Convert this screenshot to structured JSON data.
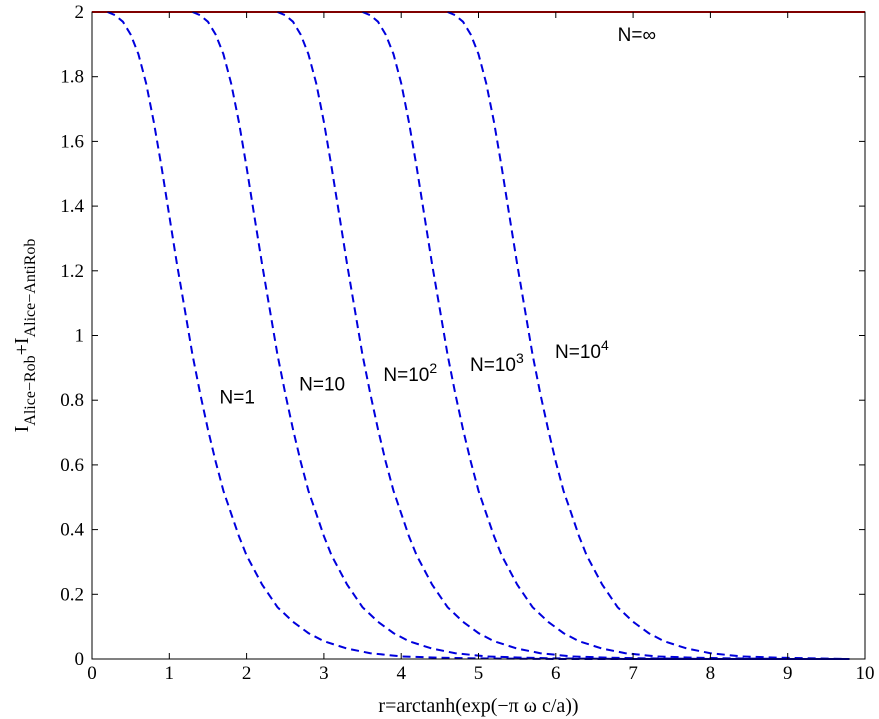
{
  "chart_data": {
    "type": "line",
    "title": "",
    "xlabel": "r=arctanh(exp(−π ω c/a))",
    "ylabel": {
      "base1": "I",
      "sub1": "Alice−Rob",
      "plus": "+",
      "base2": "I",
      "sub2": "Alice−AntiRob"
    },
    "xlim": [
      0,
      10
    ],
    "ylim": [
      0,
      2
    ],
    "xticks": [
      "0",
      "1",
      "2",
      "3",
      "4",
      "5",
      "6",
      "7",
      "8",
      "9",
      "10"
    ],
    "yticks": [
      "0",
      "0.2",
      "0.4",
      "0.6",
      "0.8",
      "1",
      "1.2",
      "1.4",
      "1.6",
      "1.8",
      "2"
    ],
    "grid": false,
    "series": [
      {
        "name": "N=∞",
        "style": "solid",
        "color": "#ff0000",
        "x": [
          0,
          10
        ],
        "y": [
          2,
          2
        ]
      },
      {
        "name": "N=1",
        "style": "dashed",
        "color": "#0000dd",
        "x": [
          0.2,
          0.3,
          0.4,
          0.5,
          0.6,
          0.7,
          0.8,
          0.9,
          1.0,
          1.1,
          1.2,
          1.3,
          1.4,
          1.5,
          1.6,
          1.7,
          1.8,
          1.9,
          2.0,
          2.2,
          2.4,
          2.6,
          2.8,
          3.0,
          3.3,
          3.6,
          4.0,
          4.5,
          5.0,
          5.5,
          6.0,
          7.0,
          8.0,
          9.0,
          9.8
        ],
        "y": [
          2.0,
          1.99,
          1.97,
          1.93,
          1.87,
          1.78,
          1.66,
          1.52,
          1.37,
          1.22,
          1.08,
          0.94,
          0.82,
          0.71,
          0.61,
          0.52,
          0.45,
          0.38,
          0.32,
          0.23,
          0.16,
          0.115,
          0.08,
          0.055,
          0.032,
          0.018,
          0.008,
          0.004,
          0.002,
          0.001,
          0.0,
          0.0,
          0.0,
          0.0,
          0.0
        ]
      },
      {
        "name": "N=10",
        "style": "dashed",
        "color": "#0000dd",
        "x": [
          1.3,
          1.4,
          1.5,
          1.6,
          1.7,
          1.8,
          1.9,
          2.0,
          2.1,
          2.2,
          2.3,
          2.4,
          2.5,
          2.6,
          2.7,
          2.8,
          2.9,
          3.0,
          3.1,
          3.3,
          3.5,
          3.7,
          3.9,
          4.1,
          4.4,
          4.7,
          5.1,
          5.6,
          6.0,
          7.0,
          8.0,
          9.0,
          9.8
        ],
        "y": [
          2.0,
          1.99,
          1.97,
          1.93,
          1.87,
          1.78,
          1.66,
          1.52,
          1.37,
          1.22,
          1.08,
          0.94,
          0.82,
          0.71,
          0.61,
          0.52,
          0.45,
          0.38,
          0.32,
          0.23,
          0.16,
          0.115,
          0.08,
          0.055,
          0.032,
          0.018,
          0.008,
          0.004,
          0.002,
          0.0,
          0.0,
          0.0,
          0.0
        ]
      },
      {
        "name": "N=10²",
        "style": "dashed",
        "color": "#0000dd",
        "x": [
          2.4,
          2.5,
          2.6,
          2.7,
          2.8,
          2.9,
          3.0,
          3.1,
          3.2,
          3.3,
          3.4,
          3.5,
          3.6,
          3.7,
          3.8,
          3.9,
          4.0,
          4.1,
          4.2,
          4.4,
          4.6,
          4.8,
          5.0,
          5.2,
          5.5,
          5.8,
          6.2,
          6.7,
          7.2,
          8.0,
          9.0,
          9.8
        ],
        "y": [
          2.0,
          1.99,
          1.97,
          1.93,
          1.87,
          1.78,
          1.66,
          1.52,
          1.37,
          1.22,
          1.08,
          0.94,
          0.82,
          0.71,
          0.61,
          0.52,
          0.45,
          0.38,
          0.32,
          0.23,
          0.16,
          0.115,
          0.08,
          0.055,
          0.032,
          0.018,
          0.008,
          0.004,
          0.002,
          0.0,
          0.0,
          0.0
        ]
      },
      {
        "name": "N=10³",
        "style": "dashed",
        "color": "#0000dd",
        "x": [
          3.5,
          3.6,
          3.7,
          3.8,
          3.9,
          4.0,
          4.1,
          4.2,
          4.3,
          4.4,
          4.5,
          4.6,
          4.7,
          4.8,
          4.9,
          5.0,
          5.1,
          5.2,
          5.3,
          5.5,
          5.7,
          5.9,
          6.1,
          6.3,
          6.6,
          6.9,
          7.3,
          7.8,
          8.3,
          9.0,
          9.8
        ],
        "y": [
          2.0,
          1.99,
          1.97,
          1.93,
          1.87,
          1.78,
          1.66,
          1.52,
          1.37,
          1.22,
          1.08,
          0.94,
          0.82,
          0.71,
          0.61,
          0.52,
          0.45,
          0.38,
          0.32,
          0.23,
          0.16,
          0.115,
          0.08,
          0.055,
          0.032,
          0.018,
          0.008,
          0.004,
          0.002,
          0.0,
          0.0
        ]
      },
      {
        "name": "N=10⁴",
        "style": "dashed",
        "color": "#0000dd",
        "x": [
          4.6,
          4.7,
          4.8,
          4.9,
          5.0,
          5.1,
          5.2,
          5.3,
          5.4,
          5.5,
          5.6,
          5.7,
          5.8,
          5.9,
          6.0,
          6.1,
          6.2,
          6.3,
          6.4,
          6.6,
          6.8,
          7.0,
          7.2,
          7.4,
          7.7,
          8.0,
          8.4,
          8.9,
          9.4,
          9.8
        ],
        "y": [
          2.0,
          1.99,
          1.97,
          1.93,
          1.87,
          1.78,
          1.66,
          1.52,
          1.37,
          1.22,
          1.08,
          0.94,
          0.82,
          0.71,
          0.61,
          0.52,
          0.45,
          0.38,
          0.32,
          0.23,
          0.16,
          0.115,
          0.08,
          0.055,
          0.032,
          0.018,
          0.008,
          0.004,
          0.002,
          0.0
        ]
      }
    ],
    "annotations": [
      {
        "base": "N=∞",
        "sup": "",
        "x": 6.8,
        "y": 1.91
      },
      {
        "base": "N=1",
        "sup": "",
        "x": 1.65,
        "y": 0.79
      },
      {
        "base": "N=10",
        "sup": "",
        "x": 2.68,
        "y": 0.83
      },
      {
        "base": "N=10",
        "sup": "2",
        "x": 3.77,
        "y": 0.86
      },
      {
        "base": "N=10",
        "sup": "3",
        "x": 4.89,
        "y": 0.89
      },
      {
        "base": "N=10",
        "sup": "4",
        "x": 5.99,
        "y": 0.93
      }
    ]
  }
}
